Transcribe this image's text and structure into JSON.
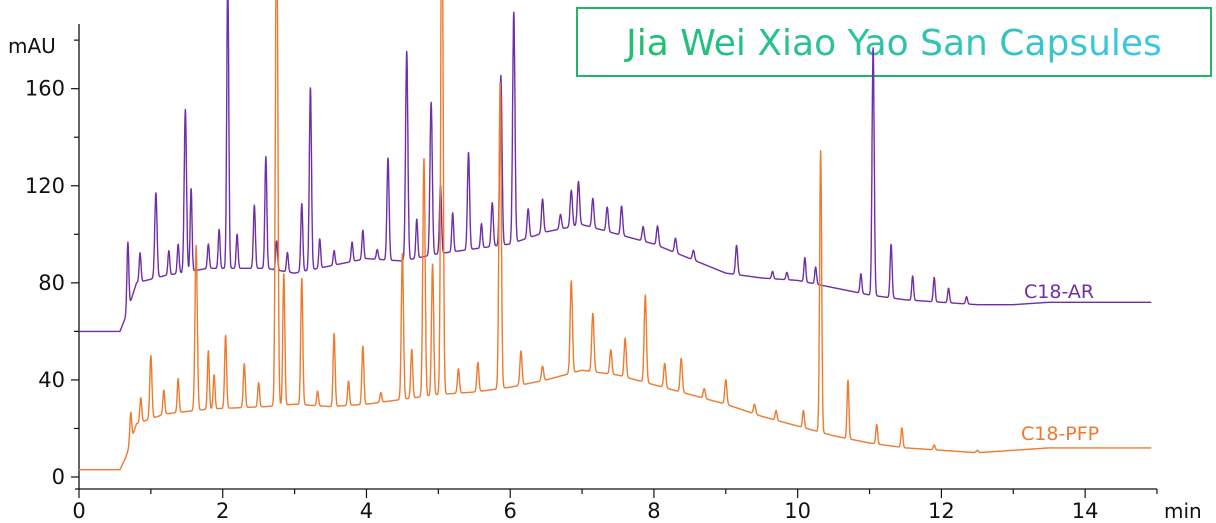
{
  "chart_data": {
    "type": "line",
    "title": "Jia Wei Xiao Yao San Capsules",
    "xlabel": "min",
    "ylabel": "mAU",
    "xlim": [
      0,
      15
    ],
    "ylim": [
      0,
      185
    ],
    "x_ticks": [
      0,
      2,
      4,
      6,
      8,
      10,
      12,
      14
    ],
    "y_ticks": [
      0,
      40,
      80,
      120,
      160
    ],
    "grid": false,
    "colors": {
      "title_left": "#1fbf6b",
      "title_right": "#3ec6e8",
      "title_box_border": "#23b566",
      "axis": "#111111"
    },
    "series": [
      {
        "name": "C18-AR",
        "color": "#6f2fa6",
        "baseline": [
          [
            0,
            60
          ],
          [
            0.57,
            60
          ],
          [
            0.65,
            66
          ],
          [
            0.8,
            80
          ],
          [
            1.2,
            83
          ],
          [
            1.8,
            86
          ],
          [
            2.6,
            86
          ],
          [
            3.0,
            84
          ],
          [
            3.5,
            87
          ],
          [
            4.0,
            90
          ],
          [
            4.5,
            89
          ],
          [
            5.0,
            92
          ],
          [
            5.5,
            94
          ],
          [
            6.0,
            96
          ],
          [
            6.5,
            101
          ],
          [
            7.0,
            104
          ],
          [
            7.5,
            100
          ],
          [
            8.0,
            96
          ],
          [
            8.5,
            90
          ],
          [
            9.0,
            84
          ],
          [
            9.5,
            82
          ],
          [
            10.0,
            81
          ],
          [
            10.5,
            78
          ],
          [
            11.0,
            75
          ],
          [
            11.5,
            73
          ],
          [
            12.0,
            72
          ],
          [
            12.5,
            71
          ],
          [
            13.0,
            71
          ],
          [
            13.5,
            72
          ],
          [
            14.0,
            72
          ],
          [
            15.0,
            72
          ]
        ],
        "peaks": [
          [
            0.68,
            28,
            0.013
          ],
          [
            0.85,
            12,
            0.013
          ],
          [
            1.07,
            35,
            0.016
          ],
          [
            1.25,
            10,
            0.013
          ],
          [
            1.38,
            12,
            0.013
          ],
          [
            1.48,
            67,
            0.016
          ],
          [
            1.56,
            34,
            0.013
          ],
          [
            1.8,
            10,
            0.013
          ],
          [
            1.95,
            16,
            0.013
          ],
          [
            2.07,
            120,
            0.014
          ],
          [
            2.2,
            14,
            0.013
          ],
          [
            2.44,
            26,
            0.014
          ],
          [
            2.6,
            46,
            0.014
          ],
          [
            2.75,
            12,
            0.013
          ],
          [
            2.9,
            8,
            0.013
          ],
          [
            3.1,
            28,
            0.014
          ],
          [
            3.22,
            75,
            0.015
          ],
          [
            3.35,
            12,
            0.013
          ],
          [
            3.55,
            6,
            0.013
          ],
          [
            3.8,
            8,
            0.013
          ],
          [
            3.95,
            12,
            0.013
          ],
          [
            4.15,
            4,
            0.013
          ],
          [
            4.3,
            42,
            0.015
          ],
          [
            4.56,
            86,
            0.016
          ],
          [
            4.7,
            16,
            0.013
          ],
          [
            4.9,
            63,
            0.016
          ],
          [
            5.03,
            28,
            0.014
          ],
          [
            5.2,
            16,
            0.013
          ],
          [
            5.42,
            40,
            0.015
          ],
          [
            5.6,
            10,
            0.013
          ],
          [
            5.75,
            18,
            0.015
          ],
          [
            5.87,
            70,
            0.016
          ],
          [
            6.05,
            95,
            0.016
          ],
          [
            6.25,
            12,
            0.015
          ],
          [
            6.45,
            14,
            0.015
          ],
          [
            6.7,
            6,
            0.015
          ],
          [
            6.85,
            15,
            0.016
          ],
          [
            6.95,
            18,
            0.016
          ],
          [
            7.15,
            12,
            0.015
          ],
          [
            7.35,
            10,
            0.015
          ],
          [
            7.55,
            12,
            0.015
          ],
          [
            7.85,
            6,
            0.015
          ],
          [
            8.05,
            8,
            0.015
          ],
          [
            8.3,
            6,
            0.015
          ],
          [
            8.55,
            4,
            0.015
          ],
          [
            9.15,
            12,
            0.015
          ],
          [
            9.65,
            3,
            0.013
          ],
          [
            9.85,
            3,
            0.013
          ],
          [
            10.1,
            10,
            0.013
          ],
          [
            10.25,
            7,
            0.013
          ],
          [
            10.88,
            8,
            0.013
          ],
          [
            11.05,
            102,
            0.015
          ],
          [
            11.3,
            22,
            0.014
          ],
          [
            11.6,
            10,
            0.013
          ],
          [
            11.9,
            10,
            0.013
          ],
          [
            12.1,
            6,
            0.013
          ],
          [
            12.35,
            3,
            0.013
          ]
        ]
      },
      {
        "name": "C18-PFP",
        "color": "#ed7a2f",
        "baseline": [
          [
            0,
            3
          ],
          [
            0.57,
            3
          ],
          [
            0.65,
            8
          ],
          [
            0.8,
            22
          ],
          [
            1.2,
            26
          ],
          [
            1.8,
            28
          ],
          [
            2.6,
            29
          ],
          [
            3.0,
            30
          ],
          [
            3.5,
            29
          ],
          [
            4.0,
            30
          ],
          [
            4.5,
            32
          ],
          [
            5.0,
            34
          ],
          [
            5.5,
            35
          ],
          [
            6.0,
            37
          ],
          [
            6.5,
            40
          ],
          [
            7.0,
            44
          ],
          [
            7.5,
            42
          ],
          [
            8.0,
            38
          ],
          [
            8.5,
            34
          ],
          [
            9.0,
            30
          ],
          [
            9.5,
            25
          ],
          [
            10.0,
            21
          ],
          [
            10.5,
            17
          ],
          [
            11.0,
            14
          ],
          [
            11.5,
            12
          ],
          [
            12.0,
            11
          ],
          [
            12.5,
            10
          ],
          [
            13.0,
            11
          ],
          [
            13.5,
            12
          ],
          [
            14.0,
            12
          ],
          [
            15.0,
            12
          ]
        ],
        "peaks": [
          [
            0.72,
            12,
            0.013
          ],
          [
            0.86,
            10,
            0.013
          ],
          [
            1.0,
            26,
            0.015
          ],
          [
            1.18,
            10,
            0.013
          ],
          [
            1.38,
            14,
            0.013
          ],
          [
            1.63,
            68,
            0.016
          ],
          [
            1.8,
            24,
            0.013
          ],
          [
            1.88,
            14,
            0.013
          ],
          [
            2.04,
            30,
            0.014
          ],
          [
            2.3,
            18,
            0.014
          ],
          [
            2.5,
            10,
            0.013
          ],
          [
            2.75,
            220,
            0.016
          ],
          [
            2.85,
            54,
            0.014
          ],
          [
            3.1,
            52,
            0.014
          ],
          [
            3.32,
            6,
            0.013
          ],
          [
            3.55,
            30,
            0.014
          ],
          [
            3.75,
            10,
            0.013
          ],
          [
            3.95,
            24,
            0.014
          ],
          [
            4.2,
            4,
            0.013
          ],
          [
            4.5,
            60,
            0.015
          ],
          [
            4.63,
            20,
            0.014
          ],
          [
            4.8,
            98,
            0.016
          ],
          [
            4.92,
            54,
            0.015
          ],
          [
            5.05,
            220,
            0.016
          ],
          [
            5.28,
            10,
            0.014
          ],
          [
            5.55,
            12,
            0.014
          ],
          [
            5.86,
            126,
            0.016
          ],
          [
            6.15,
            14,
            0.015
          ],
          [
            6.45,
            6,
            0.015
          ],
          [
            6.85,
            38,
            0.016
          ],
          [
            7.15,
            24,
            0.016
          ],
          [
            7.4,
            10,
            0.015
          ],
          [
            7.6,
            16,
            0.015
          ],
          [
            7.88,
            36,
            0.016
          ],
          [
            8.15,
            10,
            0.015
          ],
          [
            8.38,
            14,
            0.015
          ],
          [
            8.7,
            4,
            0.015
          ],
          [
            9.0,
            10,
            0.015
          ],
          [
            9.4,
            4,
            0.015
          ],
          [
            9.7,
            4,
            0.013
          ],
          [
            10.08,
            7,
            0.013
          ],
          [
            10.32,
            116,
            0.014
          ],
          [
            10.7,
            24,
            0.013
          ],
          [
            11.1,
            8,
            0.013
          ],
          [
            11.45,
            8,
            0.013
          ],
          [
            11.9,
            2,
            0.013
          ],
          [
            12.5,
            1,
            0.015
          ]
        ]
      }
    ]
  }
}
